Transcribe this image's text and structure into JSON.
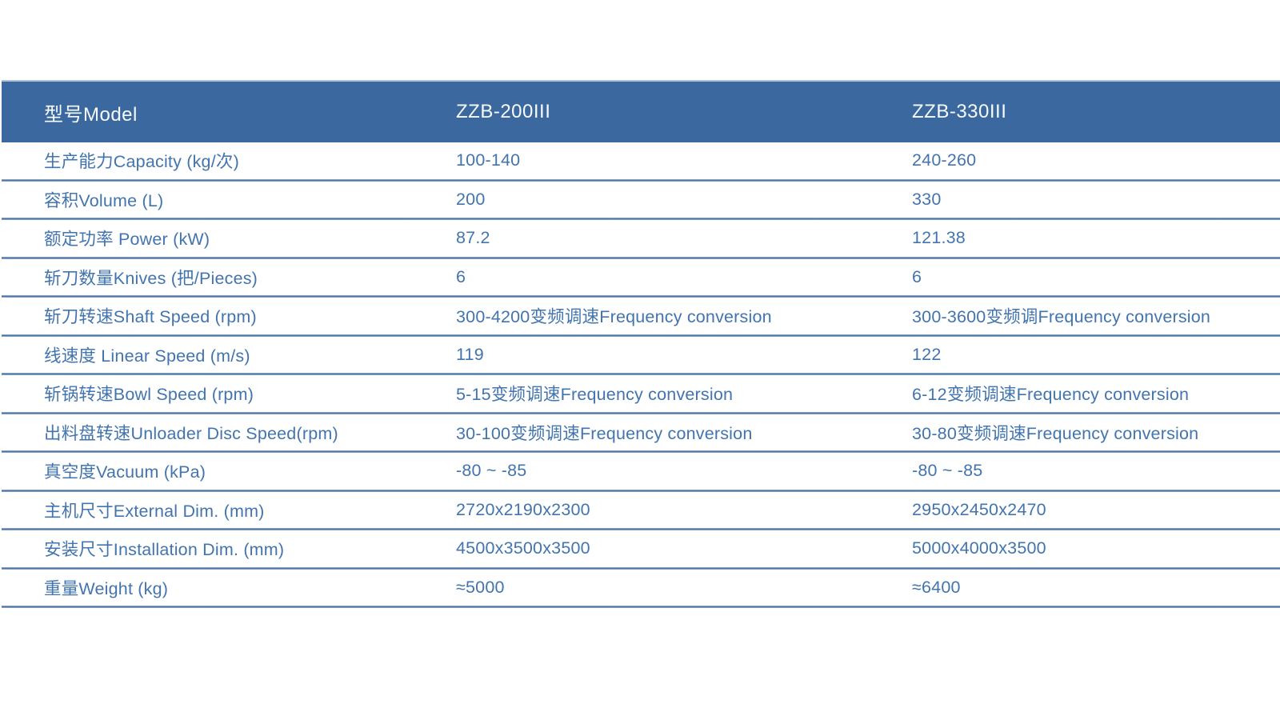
{
  "colors": {
    "page_bg": "#FFFFFF",
    "header_bg": "#3A689F",
    "header_top_border": "#B4C3DB",
    "header_text": "#F8FBFE",
    "row_text": "#4274AF",
    "divider_core": "#4D76A4",
    "divider_halo": "#BDCBE0"
  },
  "table": {
    "header": {
      "model_label": "型号Model",
      "model_1": "ZZB-200III",
      "model_2": "ZZB-330III"
    },
    "rows": [
      {
        "label": "生产能力Capacity (kg/次)",
        "zzb200": "100-140",
        "zzb330": "240-260"
      },
      {
        "label": "容积Volume (L)",
        "zzb200": "200",
        "zzb330": "330"
      },
      {
        "label": "额定功率 Power (kW)",
        "zzb200": "87.2",
        "zzb330": "121.38"
      },
      {
        "label": "斩刀数量Knives (把/Pieces)",
        "zzb200": "6",
        "zzb330": "6"
      },
      {
        "label": "斩刀转速Shaft Speed (rpm)",
        "zzb200": "300-4200变频调速Frequency conversion",
        "zzb330": "300-3600变频调Frequency conversion"
      },
      {
        "label": "线速度 Linear Speed (m/s)",
        "zzb200": "119",
        "zzb330": "122"
      },
      {
        "label": "斩锅转速Bowl Speed (rpm)",
        "zzb200": "5-15变频调速Frequency conversion",
        "zzb330": "6-12变频调速Frequency conversion"
      },
      {
        "label": "出料盘转速Unloader Disc Speed(rpm)",
        "zzb200": "30-100变频调速Frequency conversion",
        "zzb330": "30-80变频调速Frequency conversion"
      },
      {
        "label": "真空度Vacuum (kPa)",
        "zzb200": "-80 ~ -85",
        "zzb330": "-80 ~ -85"
      },
      {
        "label": "主机尺寸External Dim. (mm)",
        "zzb200": "2720x2190x2300",
        "zzb330": "2950x2450x2470"
      },
      {
        "label": "安装尺寸Installation Dim. (mm)",
        "zzb200": "4500x3500x3500",
        "zzb330": "5000x4000x3500"
      },
      {
        "label": "重量Weight (kg)",
        "zzb200": "≈5000",
        "zzb330": "≈6400"
      }
    ]
  }
}
